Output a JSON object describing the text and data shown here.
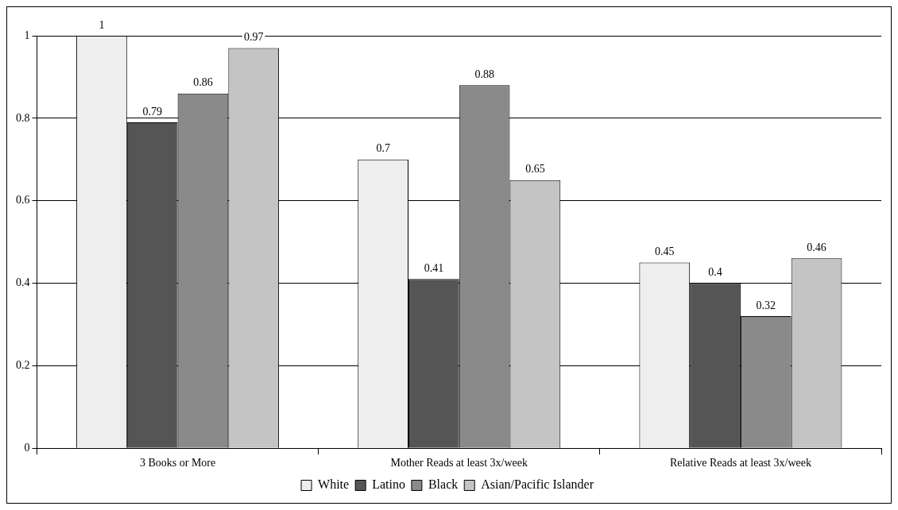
{
  "chart_data": {
    "type": "bar",
    "categories": [
      "3 Books or More",
      "Mother Reads at least 3x/week",
      "Relative Reads at least 3x/week"
    ],
    "series": [
      {
        "name": "White",
        "color": "#eeeeee",
        "values": [
          1,
          0.7,
          0.45
        ]
      },
      {
        "name": "Latino",
        "color": "#555555",
        "values": [
          0.79,
          0.41,
          0.4
        ]
      },
      {
        "name": "Black",
        "color": "#8a8a8a",
        "values": [
          0.86,
          0.88,
          0.32
        ]
      },
      {
        "name": "Asian/Pacific Islander",
        "color": "#c4c4c4",
        "values": [
          0.97,
          0.65,
          0.46
        ]
      }
    ],
    "ylim": [
      0,
      1
    ],
    "yticks": [
      0,
      0.2,
      0.4,
      0.6,
      0.8,
      1
    ],
    "grid": "y",
    "legend": "bottom",
    "data_labels": true
  }
}
